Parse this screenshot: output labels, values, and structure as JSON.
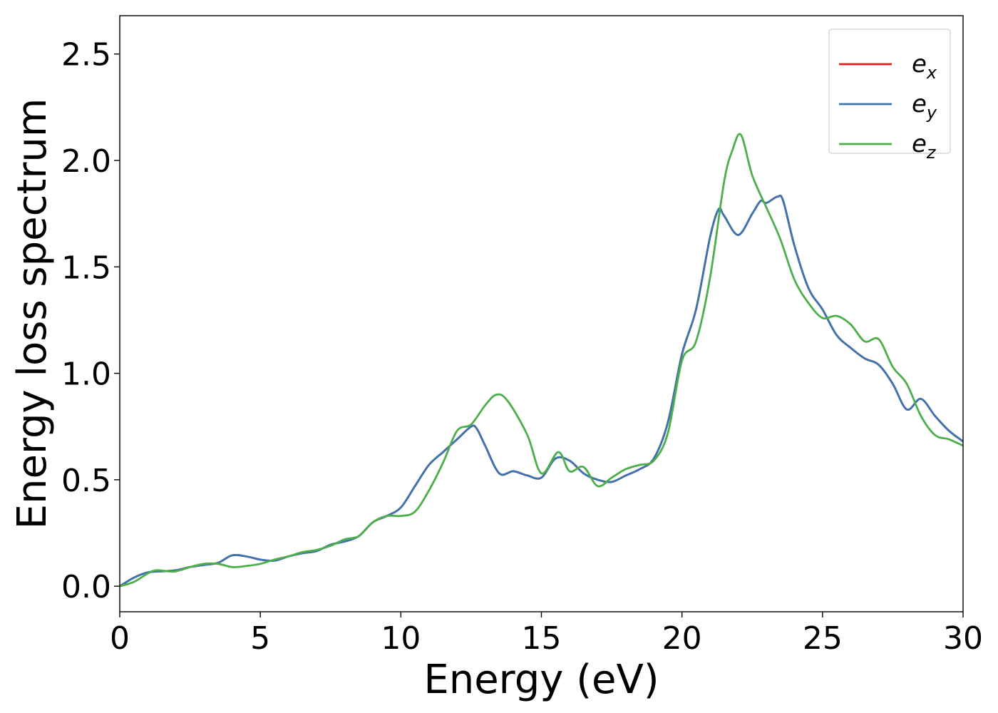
{
  "chart_data": {
    "type": "line",
    "xlabel": "Energy (eV)",
    "ylabel": "Energy loss spectrum",
    "xlim": [
      0,
      30
    ],
    "ylim": [
      -0.12,
      2.68
    ],
    "xticks": [
      0,
      5,
      10,
      15,
      20,
      25,
      30
    ],
    "yticks": [
      0.0,
      0.5,
      1.0,
      1.5,
      2.0,
      2.5
    ],
    "xtick_labels": [
      "0",
      "5",
      "10",
      "15",
      "20",
      "25",
      "30"
    ],
    "ytick_labels": [
      "0.0",
      "0.5",
      "1.0",
      "1.5",
      "2.0",
      "2.5"
    ],
    "grid": false,
    "legend_position": "top-right",
    "series": [
      {
        "name": "e_x",
        "label_base": "e",
        "label_sub": "x",
        "color": "#e41a1c",
        "x": [
          0,
          0.5,
          1,
          1.5,
          2,
          2.5,
          3,
          3.5,
          4,
          4.5,
          5,
          5.5,
          6,
          6.5,
          7,
          7.5,
          8,
          8.5,
          9,
          9.5,
          10,
          10.5,
          11,
          11.5,
          12,
          12.5,
          12.7,
          13,
          13.5,
          14,
          14.5,
          15,
          15.5,
          16,
          16.5,
          17,
          17.5,
          18,
          18.5,
          19,
          19.5,
          20,
          20.5,
          21,
          21.3,
          21.5,
          22,
          22.5,
          22.8,
          23,
          23.4,
          23.6,
          24,
          24.5,
          25,
          25.5,
          26,
          26.5,
          27,
          27.5,
          28,
          28.5,
          29,
          29.5,
          30
        ],
        "y": [
          0.0,
          0.04,
          0.065,
          0.07,
          0.075,
          0.09,
          0.1,
          0.11,
          0.145,
          0.14,
          0.125,
          0.12,
          0.14,
          0.155,
          0.165,
          0.195,
          0.21,
          0.235,
          0.3,
          0.33,
          0.37,
          0.47,
          0.57,
          0.63,
          0.69,
          0.75,
          0.74,
          0.66,
          0.53,
          0.54,
          0.52,
          0.51,
          0.6,
          0.59,
          0.53,
          0.5,
          0.49,
          0.52,
          0.55,
          0.6,
          0.77,
          1.09,
          1.3,
          1.64,
          1.77,
          1.74,
          1.65,
          1.75,
          1.81,
          1.8,
          1.83,
          1.81,
          1.6,
          1.4,
          1.3,
          1.18,
          1.12,
          1.07,
          1.04,
          0.95,
          0.83,
          0.88,
          0.8,
          0.73,
          0.68
        ]
      },
      {
        "name": "e_y",
        "label_base": "e",
        "label_sub": "y",
        "color": "#3a75b0",
        "x": [
          0,
          0.5,
          1,
          1.5,
          2,
          2.5,
          3,
          3.5,
          4,
          4.5,
          5,
          5.5,
          6,
          6.5,
          7,
          7.5,
          8,
          8.5,
          9,
          9.5,
          10,
          10.5,
          11,
          11.5,
          12,
          12.5,
          12.7,
          13,
          13.5,
          14,
          14.5,
          15,
          15.5,
          16,
          16.5,
          17,
          17.5,
          18,
          18.5,
          19,
          19.5,
          20,
          20.5,
          21,
          21.3,
          21.5,
          22,
          22.5,
          22.8,
          23,
          23.4,
          23.6,
          24,
          24.5,
          25,
          25.5,
          26,
          26.5,
          27,
          27.5,
          28,
          28.5,
          29,
          29.5,
          30
        ],
        "y": [
          0.0,
          0.04,
          0.065,
          0.07,
          0.075,
          0.09,
          0.1,
          0.11,
          0.145,
          0.14,
          0.125,
          0.12,
          0.14,
          0.155,
          0.165,
          0.195,
          0.21,
          0.235,
          0.3,
          0.33,
          0.37,
          0.47,
          0.57,
          0.63,
          0.69,
          0.75,
          0.74,
          0.66,
          0.53,
          0.54,
          0.52,
          0.51,
          0.6,
          0.59,
          0.53,
          0.5,
          0.49,
          0.52,
          0.55,
          0.6,
          0.77,
          1.09,
          1.3,
          1.64,
          1.77,
          1.74,
          1.65,
          1.75,
          1.81,
          1.8,
          1.83,
          1.81,
          1.6,
          1.4,
          1.3,
          1.18,
          1.12,
          1.07,
          1.04,
          0.95,
          0.83,
          0.88,
          0.8,
          0.73,
          0.68
        ]
      },
      {
        "name": "e_z",
        "label_base": "e",
        "label_sub": "z",
        "color": "#4daf4a",
        "x": [
          0,
          0.5,
          1,
          1.3,
          1.7,
          2,
          2.5,
          3,
          3.5,
          4,
          4.5,
          5,
          5.5,
          6,
          6.5,
          7,
          7.5,
          8,
          8.5,
          9,
          9.5,
          10,
          10.5,
          11,
          11.5,
          12,
          12.5,
          13,
          13.4,
          13.8,
          14.5,
          15,
          15.6,
          16,
          16.5,
          17,
          17.5,
          18,
          18.5,
          19,
          19.5,
          20,
          20.5,
          21,
          21.5,
          21.8,
          22.1,
          22.5,
          23,
          23.5,
          24,
          24.5,
          25,
          25.5,
          26,
          26.5,
          27,
          27.5,
          28,
          28.5,
          29,
          29.5,
          30
        ],
        "y": [
          0.0,
          0.02,
          0.06,
          0.075,
          0.07,
          0.07,
          0.09,
          0.105,
          0.105,
          0.09,
          0.095,
          0.105,
          0.125,
          0.14,
          0.16,
          0.17,
          0.19,
          0.22,
          0.235,
          0.3,
          0.33,
          0.33,
          0.35,
          0.45,
          0.58,
          0.73,
          0.76,
          0.85,
          0.9,
          0.87,
          0.71,
          0.53,
          0.63,
          0.54,
          0.56,
          0.47,
          0.51,
          0.55,
          0.57,
          0.59,
          0.72,
          1.06,
          1.15,
          1.45,
          1.9,
          2.05,
          2.12,
          1.93,
          1.78,
          1.63,
          1.44,
          1.33,
          1.26,
          1.27,
          1.23,
          1.15,
          1.16,
          1.03,
          0.95,
          0.8,
          0.71,
          0.69,
          0.66
        ]
      }
    ]
  }
}
